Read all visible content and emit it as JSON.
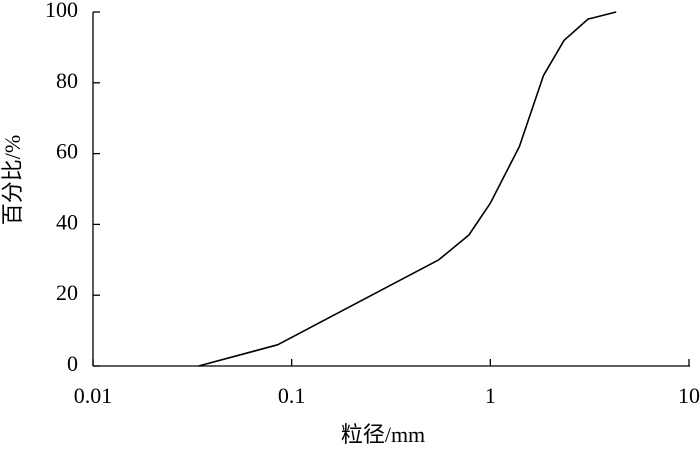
{
  "chart_data": {
    "type": "line",
    "x_label": "粒径/mm",
    "y_label": "百分比/%",
    "xscale": "log",
    "x": [
      0.034,
      0.085,
      0.2,
      0.55,
      0.78,
      1.0,
      1.4,
      1.85,
      2.35,
      3.1,
      4.3
    ],
    "series": [
      {
        "color": "#000000",
        "values": [
          0,
          6,
          17,
          30,
          37,
          46,
          62,
          82,
          92,
          98,
          100
        ]
      }
    ],
    "xlim": [
      0.01,
      10
    ],
    "xticks": [
      0.01,
      0.1,
      1,
      10
    ],
    "ylim": [
      0,
      100
    ],
    "yticks": [
      0,
      20,
      40,
      60,
      80,
      100
    ]
  }
}
